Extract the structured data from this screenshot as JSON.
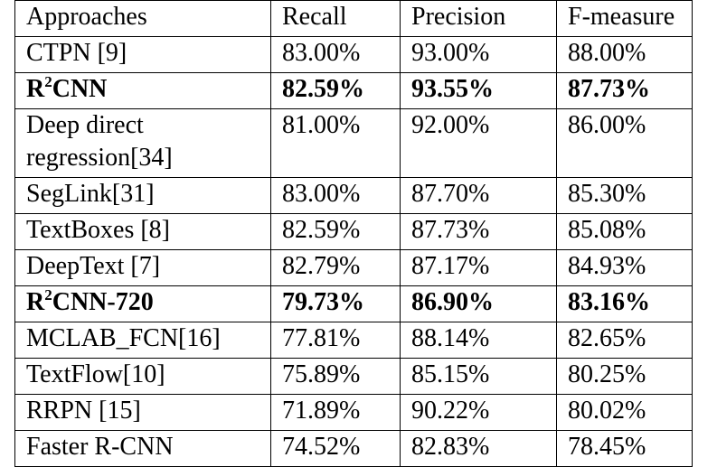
{
  "table": {
    "headers": [
      "Approaches",
      "Recall",
      "Precision",
      "F-measure"
    ],
    "rows": [
      {
        "approach": "CTPN [9]",
        "recall": "83.00%",
        "precision": "93.00%",
        "f": "88.00%"
      },
      {
        "approach_pre": "R",
        "approach_sup": "2",
        "approach_post": "CNN",
        "recall": "82.59%",
        "precision": "93.55%",
        "f": "87.73%"
      },
      {
        "approach_line1": "Deep direct",
        "approach_line2": "regression[34]",
        "recall": "81.00%",
        "precision": "92.00%",
        "f": "86.00%"
      },
      {
        "approach": "SegLink[31]",
        "recall": "83.00%",
        "precision": "87.70%",
        "f": "85.30%"
      },
      {
        "approach": "TextBoxes [8]",
        "recall": "82.59%",
        "precision": "87.73%",
        "f": "85.08%"
      },
      {
        "approach": "DeepText [7]",
        "recall": "82.79%",
        "precision": "87.17%",
        "f": "84.93%"
      },
      {
        "approach_pre": "R",
        "approach_sup": "2",
        "approach_post": "CNN-720",
        "recall": "79.73%",
        "precision": "86.90%",
        "f": "83.16%"
      },
      {
        "approach": "MCLAB_FCN[16]",
        "recall": "77.81%",
        "precision": "88.14%",
        "f": "82.65%"
      },
      {
        "approach": "TextFlow[10]",
        "recall": "75.89%",
        "precision": "85.15%",
        "f": "80.25%"
      },
      {
        "approach": "RRPN [15]",
        "recall": "71.89%",
        "precision": "90.22%",
        "f": "80.02%"
      },
      {
        "approach": "Faster R-CNN",
        "recall": "74.52%",
        "precision": "82.83%",
        "f": "78.45%"
      }
    ]
  }
}
